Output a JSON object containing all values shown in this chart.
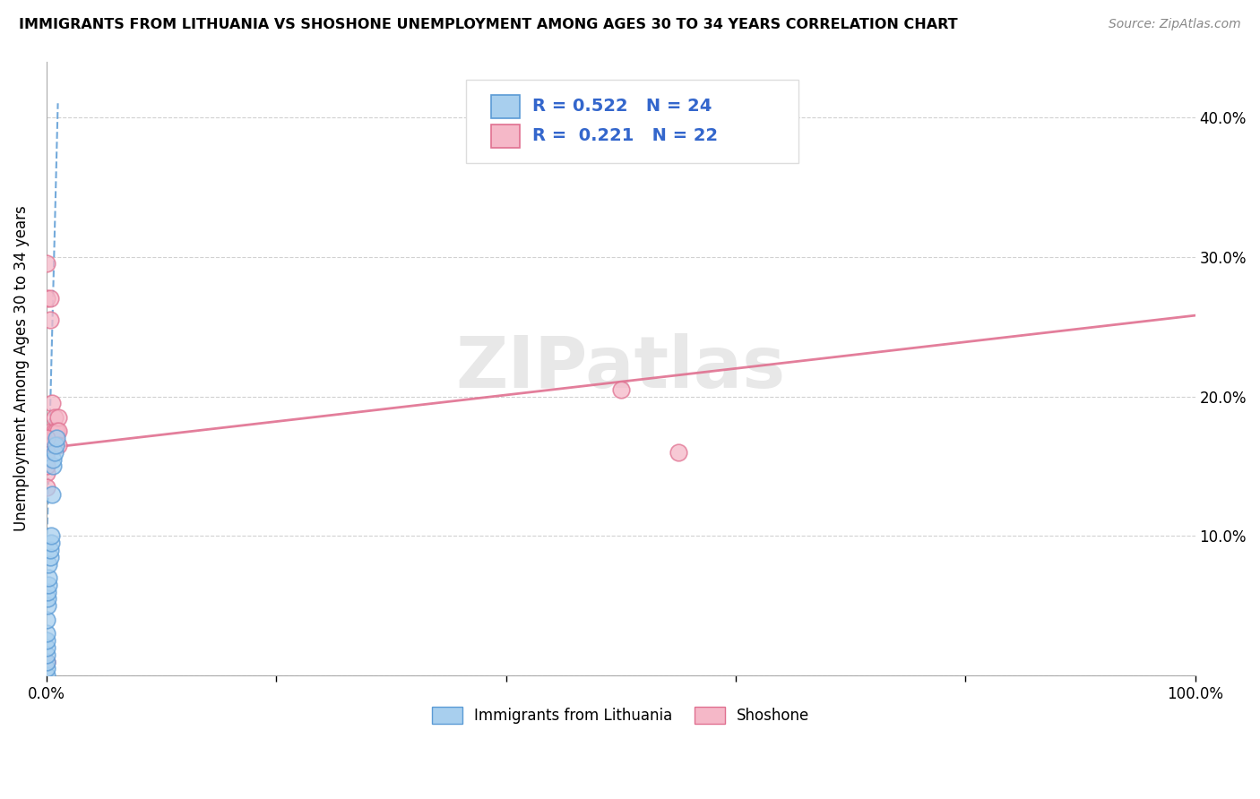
{
  "title": "IMMIGRANTS FROM LITHUANIA VS SHOSHONE UNEMPLOYMENT AMONG AGES 30 TO 34 YEARS CORRELATION CHART",
  "source": "Source: ZipAtlas.com",
  "ylabel": "Unemployment Among Ages 30 to 34 years",
  "xlim": [
    0.0,
    1.0
  ],
  "ylim": [
    0.0,
    0.44
  ],
  "xtick_positions": [
    0.0,
    0.2,
    0.4,
    0.6,
    0.8,
    1.0
  ],
  "xticklabels": [
    "0.0%",
    "",
    "",
    "",
    "",
    "100.0%"
  ],
  "ytick_positions": [
    0.0,
    0.1,
    0.2,
    0.3,
    0.4
  ],
  "yticklabels_right": [
    "",
    "10.0%",
    "20.0%",
    "30.0%",
    "40.0%"
  ],
  "legend_labels": [
    "Immigrants from Lithuania",
    "Shoshone"
  ],
  "R1": "0.522",
  "N1": "24",
  "R2": "0.221",
  "N2": "22",
  "color_blue": "#A8CFEE",
  "color_blue_edge": "#5B9BD5",
  "color_pink": "#F5B8C8",
  "color_pink_edge": "#E07090",
  "color_blue_line": "#5B9BD5",
  "color_pink_line": "#E07090",
  "color_legend_text": "#3366CC",
  "watermark_text": "ZIPatlas",
  "blue_scatter_x": [
    0.0,
    0.0,
    0.0,
    0.0,
    0.0,
    0.0,
    0.0,
    0.0,
    0.001,
    0.001,
    0.001,
    0.002,
    0.002,
    0.002,
    0.003,
    0.003,
    0.004,
    0.004,
    0.005,
    0.006,
    0.006,
    0.007,
    0.008,
    0.009
  ],
  "blue_scatter_y": [
    0.0,
    0.005,
    0.01,
    0.015,
    0.02,
    0.025,
    0.03,
    0.04,
    0.05,
    0.055,
    0.06,
    0.065,
    0.07,
    0.08,
    0.085,
    0.09,
    0.095,
    0.1,
    0.13,
    0.15,
    0.155,
    0.16,
    0.165,
    0.17
  ],
  "pink_scatter_x": [
    0.0,
    0.0,
    0.003,
    0.003,
    0.005,
    0.005,
    0.005,
    0.007,
    0.007,
    0.009,
    0.5,
    0.55,
    0.01,
    0.01,
    0.01,
    0.0,
    0.0,
    0.0,
    0.0,
    0.0,
    0.0,
    0.0
  ],
  "pink_scatter_y": [
    0.295,
    0.27,
    0.27,
    0.255,
    0.195,
    0.175,
    0.165,
    0.175,
    0.185,
    0.175,
    0.205,
    0.16,
    0.185,
    0.175,
    0.165,
    0.16,
    0.155,
    0.145,
    0.135,
    0.15,
    0.17,
    0.01
  ],
  "blue_trend_x": [
    0.0,
    0.01
  ],
  "blue_trend_y": [
    0.08,
    0.41
  ],
  "pink_trend_x": [
    0.0,
    1.0
  ],
  "pink_trend_y": [
    0.163,
    0.258
  ]
}
